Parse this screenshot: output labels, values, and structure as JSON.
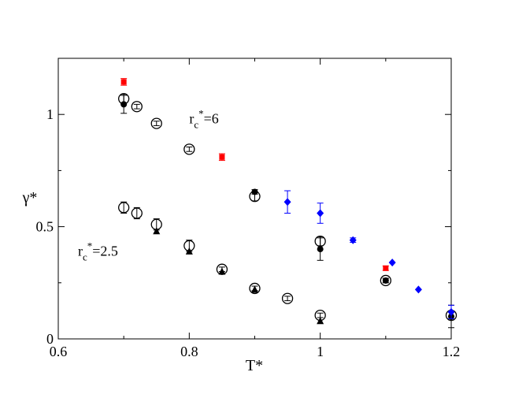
{
  "chart_data": {
    "type": "scatter",
    "title": "",
    "xlabel": "T*",
    "ylabel": "γ*",
    "xlim": [
      0.6,
      1.2
    ],
    "ylim": [
      0,
      1.25
    ],
    "xticks": [
      0.6,
      0.8,
      1,
      1.2
    ],
    "xtick_labels": [
      "0.6",
      "0.8",
      "1",
      "1.2"
    ],
    "yticks": [
      0,
      0.5,
      1
    ],
    "ytick_labels": [
      "0",
      "0.5",
      "1"
    ],
    "grid": false,
    "legend": "none",
    "annotations": [
      {
        "text": "r",
        "sub": "c",
        "sup": "*",
        "rest": "=6",
        "x": 0.8,
        "y": 0.96
      },
      {
        "text": "r",
        "sub": "c",
        "sup": "*",
        "rest": "=2.5",
        "x": 0.63,
        "y": 0.37
      }
    ],
    "series": [
      {
        "marker": "open-circle",
        "color": "#000000",
        "points": [
          {
            "x": 0.7,
            "y": 1.07,
            "err": 0.02
          },
          {
            "x": 0.72,
            "y": 1.035,
            "err": 0.01
          },
          {
            "x": 0.75,
            "y": 0.96,
            "err": 0.01
          },
          {
            "x": 0.8,
            "y": 0.845,
            "err": 0.01
          },
          {
            "x": 0.9,
            "y": 0.635,
            "err": 0.02
          },
          {
            "x": 1.0,
            "y": 0.435,
            "err": 0.02
          },
          {
            "x": 1.1,
            "y": 0.26,
            "err": 0.01
          },
          {
            "x": 1.2,
            "y": 0.105,
            "err": 0.02
          },
          {
            "x": 0.7,
            "y": 0.585,
            "err": 0.025
          },
          {
            "x": 0.72,
            "y": 0.56,
            "err": 0.025
          },
          {
            "x": 0.75,
            "y": 0.51,
            "err": 0.025
          },
          {
            "x": 0.8,
            "y": 0.415,
            "err": 0.025
          },
          {
            "x": 0.85,
            "y": 0.31,
            "err": 0.01
          },
          {
            "x": 0.9,
            "y": 0.225,
            "err": 0.01
          },
          {
            "x": 0.95,
            "y": 0.18,
            "err": 0.01
          },
          {
            "x": 1.0,
            "y": 0.105,
            "err": 0.01
          }
        ]
      },
      {
        "marker": "filled-circle",
        "color": "#000000",
        "points": [
          {
            "x": 0.7,
            "y": 1.045,
            "err": 0.04
          },
          {
            "x": 0.9,
            "y": 0.655,
            "err": 0.01
          },
          {
            "x": 1.0,
            "y": 0.4,
            "err": 0.05
          },
          {
            "x": 1.1,
            "y": 0.26,
            "err": 0.01
          },
          {
            "x": 1.2,
            "y": 0.1,
            "err": 0.05
          }
        ]
      },
      {
        "marker": "filled-triangle",
        "color": "#000000",
        "points": [
          {
            "x": 0.75,
            "y": 0.48
          },
          {
            "x": 0.8,
            "y": 0.39
          },
          {
            "x": 0.85,
            "y": 0.3
          },
          {
            "x": 0.9,
            "y": 0.22
          },
          {
            "x": 1.0,
            "y": 0.08
          }
        ]
      },
      {
        "marker": "filled-square",
        "color": "#ff0000",
        "points": [
          {
            "x": 0.7,
            "y": 1.145,
            "err": 0.015
          },
          {
            "x": 0.85,
            "y": 0.81,
            "err": 0.015
          },
          {
            "x": 1.1,
            "y": 0.315,
            "err": 0.01
          }
        ]
      },
      {
        "marker": "filled-diamond",
        "color": "#0000ff",
        "points": [
          {
            "x": 0.95,
            "y": 0.61,
            "err": 0.05
          },
          {
            "x": 1.0,
            "y": 0.56,
            "err": 0.045
          },
          {
            "x": 1.05,
            "y": 0.44,
            "err": 0.01
          },
          {
            "x": 1.11,
            "y": 0.34,
            "err": 0.0
          },
          {
            "x": 1.15,
            "y": 0.22,
            "err": 0.0
          },
          {
            "x": 1.2,
            "y": 0.12,
            "err": 0.03
          }
        ]
      }
    ]
  }
}
